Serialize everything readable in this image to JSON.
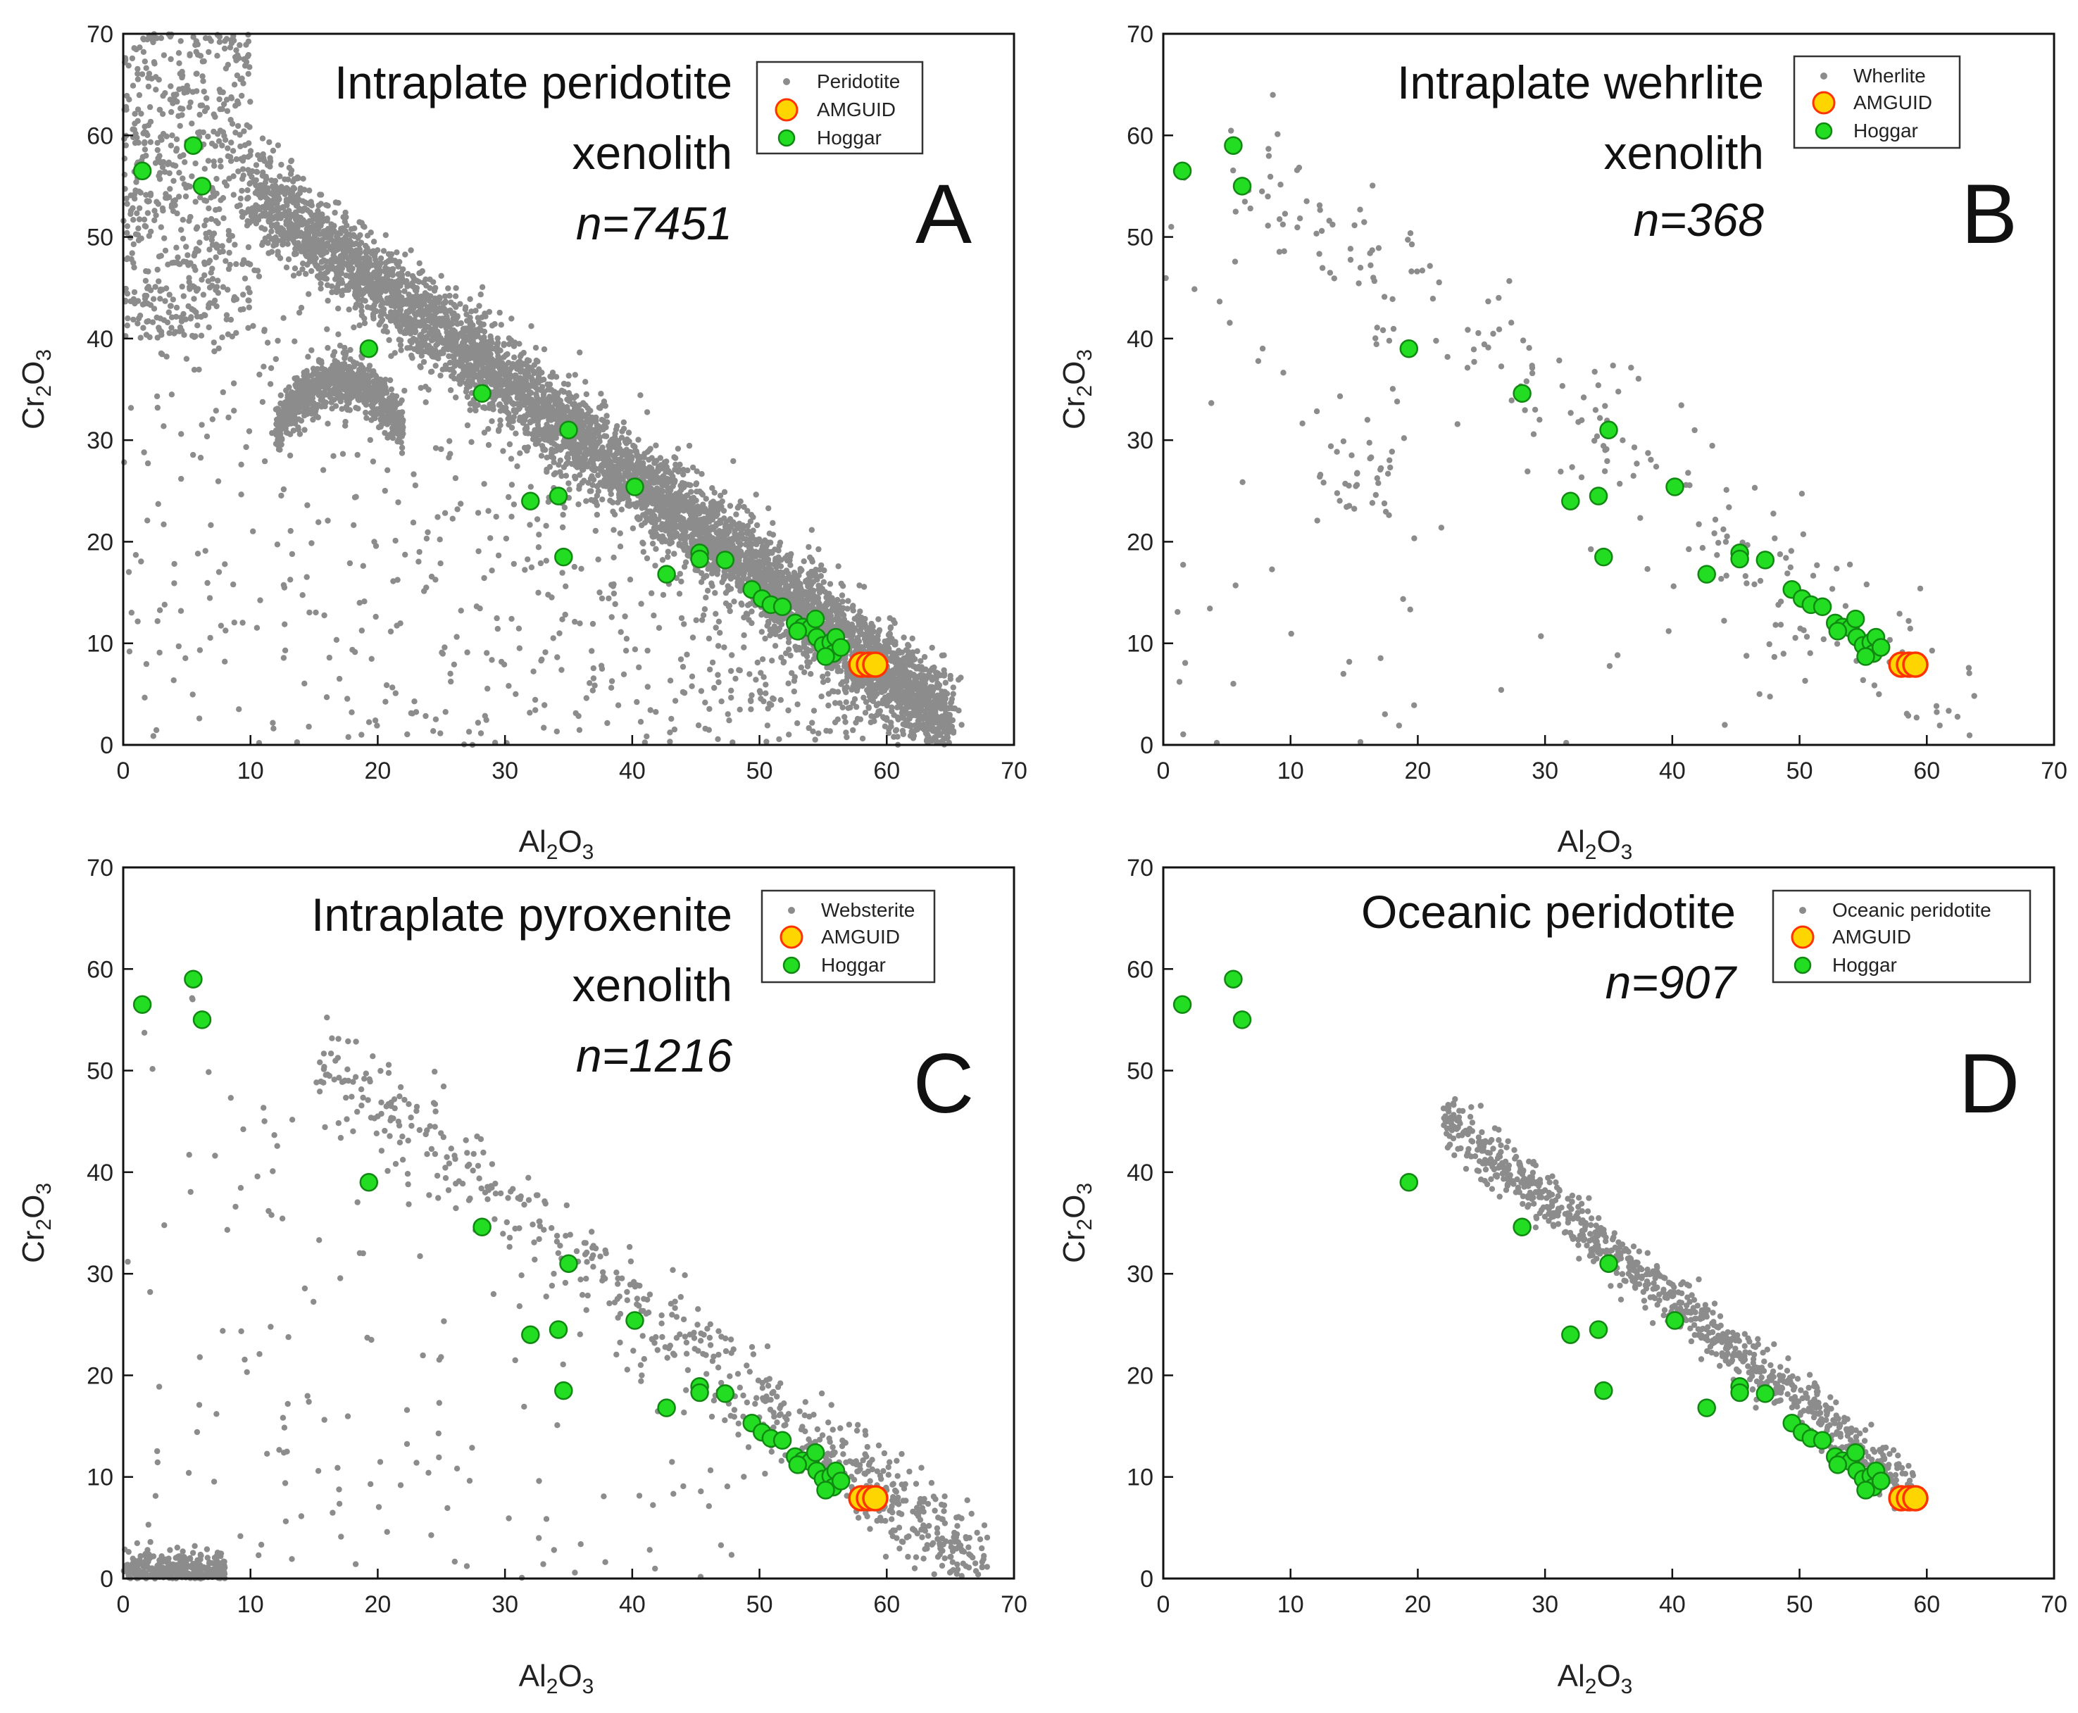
{
  "colors": {
    "background_points": "#8c8c8c",
    "hoggar_fill": "#22dd22",
    "hoggar_stroke": "#118811",
    "amguid_fill": "#ffd500",
    "amguid_stroke": "#ff3300",
    "frame": "#111111"
  },
  "chart_data": [
    {
      "type": "scatter",
      "panel_letter": "A",
      "title_lines": [
        "Intraplate peridotite",
        "xenolith"
      ],
      "n_label": "n=7451",
      "xlabel": "Al2O3",
      "ylabel": "Cr2O3",
      "xlim": [
        0,
        70
      ],
      "ylim": [
        0,
        70
      ],
      "x_ticks": [
        0,
        10,
        20,
        30,
        40,
        50,
        60,
        70
      ],
      "y_ticks": [
        0,
        10,
        20,
        30,
        40,
        50,
        60,
        70
      ],
      "legend": {
        "position": "top-right",
        "entries": [
          "Peridotite",
          "AMGUID",
          "Hoggar"
        ]
      },
      "background_series": {
        "name": "Peridotite",
        "n": 7451,
        "pattern": "trend-dense"
      }
    },
    {
      "type": "scatter",
      "panel_letter": "B",
      "title_lines": [
        "Intraplate wehrlite",
        "xenolith"
      ],
      "n_label": "n=368",
      "xlabel": "Al2O3",
      "ylabel": "Cr2O3",
      "xlim": [
        0,
        70
      ],
      "ylim": [
        0,
        70
      ],
      "x_ticks": [
        0,
        10,
        20,
        30,
        40,
        50,
        60,
        70
      ],
      "y_ticks": [
        0,
        10,
        20,
        30,
        40,
        50,
        60,
        70
      ],
      "legend": {
        "position": "top-right",
        "entries": [
          "Wherlite",
          "AMGUID",
          "Hoggar"
        ]
      },
      "background_series": {
        "name": "Wherlite",
        "n": 368,
        "pattern": "sparse"
      }
    },
    {
      "type": "scatter",
      "panel_letter": "C",
      "title_lines": [
        "Intraplate pyroxenite",
        "xenolith"
      ],
      "n_label": "n=1216",
      "xlabel": "Al2O3",
      "ylabel": "Cr2O3",
      "xlim": [
        0,
        70
      ],
      "ylim": [
        0,
        70
      ],
      "x_ticks": [
        0,
        10,
        20,
        30,
        40,
        50,
        60,
        70
      ],
      "y_ticks": [
        0,
        10,
        20,
        30,
        40,
        50,
        60,
        70
      ],
      "legend": {
        "position": "top-right",
        "entries": [
          "Websterite",
          "AMGUID",
          "Hoggar"
        ]
      },
      "background_series": {
        "name": "Websterite",
        "n": 1216,
        "pattern": "sparse-with-low-cluster"
      }
    },
    {
      "type": "scatter",
      "panel_letter": "D",
      "title_lines": [
        "Oceanic peridotite"
      ],
      "n_label": "n=907",
      "xlabel": "Al2O3",
      "ylabel": "Cr2O3",
      "xlim": [
        0,
        70
      ],
      "ylim": [
        0,
        70
      ],
      "x_ticks": [
        0,
        10,
        20,
        30,
        40,
        50,
        60,
        70
      ],
      "y_ticks": [
        0,
        10,
        20,
        30,
        40,
        50,
        60,
        70
      ],
      "legend": {
        "position": "top-right",
        "entries": [
          "Oceanic peridotite",
          "AMGUID",
          "Hoggar"
        ]
      },
      "background_series": {
        "name": "Oceanic peridotite",
        "n": 907,
        "pattern": "narrow-trend"
      }
    }
  ],
  "shared_series": {
    "hoggar": {
      "name": "Hoggar",
      "points": [
        [
          1.5,
          56.5
        ],
        [
          5.5,
          59
        ],
        [
          6.2,
          55
        ],
        [
          19.3,
          39
        ],
        [
          28.2,
          34.6
        ],
        [
          32,
          24
        ],
        [
          34.2,
          24.5
        ],
        [
          35,
          31
        ],
        [
          34.6,
          18.5
        ],
        [
          40.2,
          25.4
        ],
        [
          42.7,
          16.8
        ],
        [
          45.3,
          18.9
        ],
        [
          45.3,
          18.3
        ],
        [
          47.3,
          18.2
        ],
        [
          49.4,
          15.3
        ],
        [
          50.2,
          14.4
        ],
        [
          50.9,
          13.8
        ],
        [
          51.8,
          13.6
        ],
        [
          52.8,
          12.0
        ],
        [
          53.4,
          11.6
        ],
        [
          54.0,
          11.5
        ],
        [
          54.5,
          10.6
        ],
        [
          55.0,
          9.8
        ],
        [
          55.6,
          10.1
        ],
        [
          56.0,
          10.6
        ],
        [
          55.8,
          9.0
        ],
        [
          55.2,
          8.7
        ],
        [
          56.4,
          9.6
        ],
        [
          54.4,
          12.4
        ],
        [
          53.0,
          11.2
        ]
      ]
    },
    "amguid": {
      "name": "AMGUID",
      "points": [
        [
          58.0,
          7.9
        ],
        [
          58.6,
          7.9
        ],
        [
          59.1,
          7.9
        ]
      ]
    }
  }
}
